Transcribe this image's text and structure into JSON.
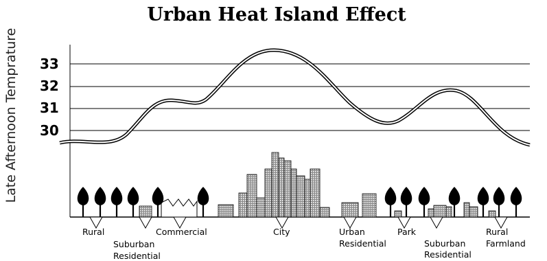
{
  "title": "Urban Heat Island Effect",
  "y_axis_label": "Late Afternoon Temprature",
  "y_ticks": [
    "33",
    "32",
    "31",
    "30"
  ],
  "zones": {
    "rural": "Rural",
    "suburban_residential_1": [
      "Suburban",
      "Residential"
    ],
    "commercial": "Commercial",
    "city": "City",
    "urban_residential": [
      "Urban",
      "Residential"
    ],
    "park": "Park",
    "suburban_residential_2": [
      "Suburban",
      "Residential"
    ],
    "rural_farmland": [
      "Rural",
      "Farmland"
    ]
  },
  "colors": {
    "line": "#000000",
    "building_fill": "#8c8c8c",
    "tree": "#000000"
  }
}
